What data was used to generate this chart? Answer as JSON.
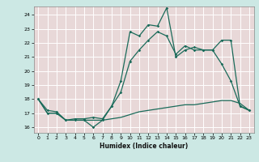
{
  "title": "",
  "xlabel": "Humidex (Indice chaleur)",
  "bg_color": "#cce8e4",
  "plot_bg_color": "#e8d8d8",
  "grid_color": "#ffffff",
  "line_color": "#1a6b5a",
  "xlim": [
    -0.5,
    23.5
  ],
  "ylim": [
    15.6,
    24.6
  ],
  "xticks": [
    0,
    1,
    2,
    3,
    4,
    5,
    6,
    7,
    8,
    9,
    10,
    11,
    12,
    13,
    14,
    15,
    16,
    17,
    18,
    19,
    20,
    21,
    22,
    23
  ],
  "yticks": [
    16,
    17,
    18,
    19,
    20,
    21,
    22,
    23,
    24
  ],
  "line1_x": [
    0,
    1,
    2,
    3,
    4,
    5,
    6,
    7,
    8,
    9,
    10,
    11,
    12,
    13,
    14,
    15,
    16,
    17,
    18,
    19,
    20,
    21,
    22,
    23
  ],
  "line1_y": [
    18.0,
    17.0,
    17.0,
    16.5,
    16.5,
    16.5,
    16.0,
    16.5,
    17.5,
    19.3,
    22.8,
    22.5,
    23.3,
    23.2,
    24.5,
    21.0,
    21.5,
    21.7,
    21.5,
    21.5,
    20.5,
    19.3,
    17.5,
    17.2
  ],
  "line2_x": [
    0,
    1,
    2,
    3,
    4,
    5,
    6,
    7,
    8,
    9,
    10,
    11,
    12,
    13,
    14,
    15,
    16,
    17,
    18,
    19,
    20,
    21,
    22,
    23
  ],
  "line2_y": [
    18.0,
    17.2,
    17.1,
    16.5,
    16.6,
    16.6,
    16.7,
    16.6,
    17.5,
    18.5,
    20.7,
    21.5,
    22.2,
    22.8,
    22.5,
    21.2,
    21.8,
    21.5,
    21.5,
    21.5,
    22.2,
    22.2,
    17.5,
    17.2
  ],
  "line3_x": [
    0,
    1,
    2,
    3,
    4,
    5,
    6,
    7,
    8,
    9,
    10,
    11,
    12,
    13,
    14,
    15,
    16,
    17,
    18,
    19,
    20,
    21,
    22,
    23
  ],
  "line3_y": [
    18.0,
    17.0,
    17.0,
    16.5,
    16.5,
    16.5,
    16.5,
    16.5,
    16.6,
    16.7,
    16.9,
    17.1,
    17.2,
    17.3,
    17.4,
    17.5,
    17.6,
    17.6,
    17.7,
    17.8,
    17.9,
    17.9,
    17.7,
    17.2
  ]
}
